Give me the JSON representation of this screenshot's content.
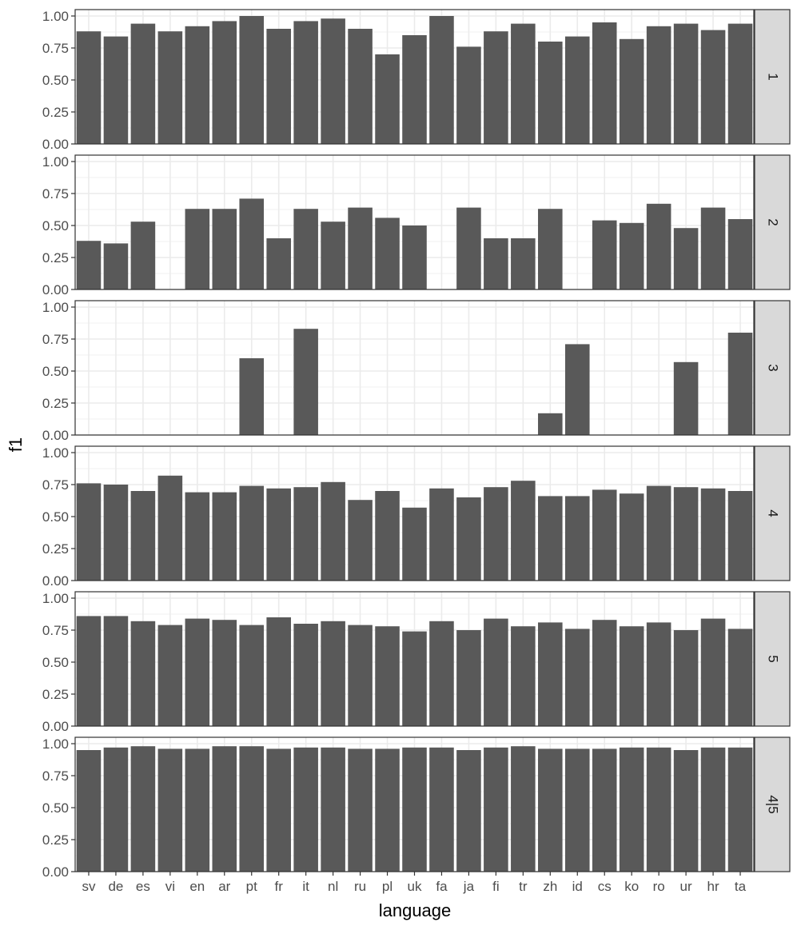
{
  "chart_data": {
    "type": "bar",
    "xlabel": "language",
    "ylabel": "f1",
    "ylim": [
      0,
      1.05
    ],
    "yticks": [
      0.0,
      0.25,
      0.5,
      0.75,
      1.0
    ],
    "ytick_labels": [
      "0.00",
      "0.25",
      "0.50",
      "0.75",
      "1.00"
    ],
    "grid": true,
    "bar_color": "#595959",
    "panel_border_color": "#333333",
    "strip_fill": "#d9d9d9",
    "gridline_color": "#ebebeb",
    "categories": [
      "sv",
      "de",
      "es",
      "vi",
      "en",
      "ar",
      "pt",
      "fr",
      "it",
      "nl",
      "ru",
      "pl",
      "uk",
      "fa",
      "ja",
      "fi",
      "tr",
      "zh",
      "id",
      "cs",
      "ko",
      "ro",
      "ur",
      "hr",
      "ta"
    ],
    "panels": [
      {
        "label": "1",
        "values": [
          0.88,
          0.84,
          0.94,
          0.88,
          0.92,
          0.96,
          1.0,
          0.9,
          0.96,
          0.98,
          0.9,
          0.7,
          0.85,
          1.0,
          0.76,
          0.88,
          0.94,
          0.8,
          0.84,
          0.95,
          0.82,
          0.92,
          0.94,
          0.89,
          0.94
        ]
      },
      {
        "label": "2",
        "values": [
          0.38,
          0.36,
          0.53,
          0.0,
          0.63,
          0.63,
          0.71,
          0.4,
          0.63,
          0.53,
          0.64,
          0.56,
          0.5,
          0.0,
          0.64,
          0.4,
          0.4,
          0.63,
          0.0,
          0.54,
          0.52,
          0.67,
          0.48,
          0.64,
          0.55
        ]
      },
      {
        "label": "3",
        "values": [
          0,
          0,
          0,
          0,
          0,
          0,
          0.6,
          0,
          0.83,
          0,
          0,
          0,
          0,
          0,
          0,
          0,
          0,
          0.17,
          0.71,
          0,
          0,
          0,
          0.57,
          0,
          0.8
        ]
      },
      {
        "label": "4",
        "values": [
          0.76,
          0.75,
          0.7,
          0.82,
          0.69,
          0.69,
          0.74,
          0.72,
          0.73,
          0.77,
          0.63,
          0.7,
          0.57,
          0.72,
          0.65,
          0.73,
          0.78,
          0.66,
          0.66,
          0.71,
          0.68,
          0.74,
          0.73,
          0.72,
          0.7
        ]
      },
      {
        "label": "5",
        "values": [
          0.86,
          0.86,
          0.82,
          0.79,
          0.84,
          0.83,
          0.79,
          0.85,
          0.8,
          0.82,
          0.79,
          0.78,
          0.74,
          0.82,
          0.75,
          0.84,
          0.78,
          0.81,
          0.76,
          0.83,
          0.78,
          0.81,
          0.75,
          0.84,
          0.76
        ]
      },
      {
        "label": "4|5",
        "values": [
          0.95,
          0.97,
          0.98,
          0.96,
          0.96,
          0.98,
          0.98,
          0.96,
          0.97,
          0.97,
          0.96,
          0.96,
          0.97,
          0.97,
          0.95,
          0.97,
          0.98,
          0.96,
          0.96,
          0.96,
          0.97,
          0.97,
          0.95,
          0.97,
          0.97
        ]
      }
    ]
  }
}
